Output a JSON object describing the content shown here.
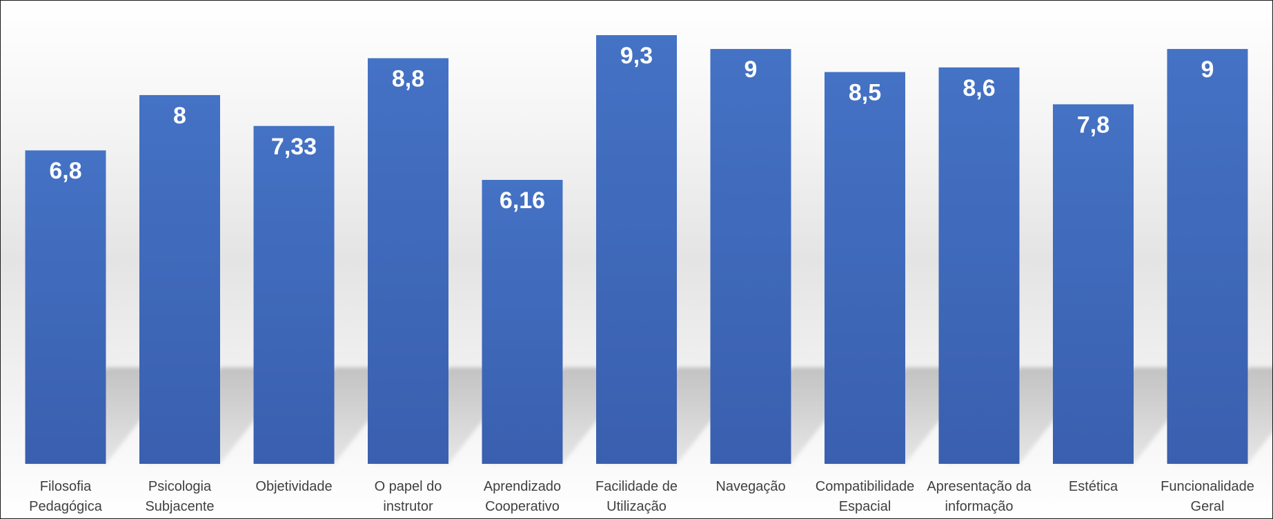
{
  "chart_data": {
    "type": "bar",
    "categories": [
      [
        "Filosofia",
        "Pedagógica"
      ],
      [
        "Psicologia",
        "Subjacente"
      ],
      [
        "Objetividade"
      ],
      [
        "O papel do",
        "instrutor"
      ],
      [
        "Aprendizado",
        "Cooperativo"
      ],
      [
        "Facilidade de",
        "Utilização"
      ],
      [
        "Navegação"
      ],
      [
        "Compatibilidade",
        "Espacial"
      ],
      [
        "Apresentação da",
        "informação"
      ],
      [
        "Estética"
      ],
      [
        "Funcionalidade",
        "Geral"
      ]
    ],
    "values": [
      6.8,
      8,
      7.33,
      8.8,
      6.16,
      9.3,
      9,
      8.5,
      8.6,
      7.8,
      9
    ],
    "data_labels": [
      "6,8",
      "8",
      "7,33",
      "8,8",
      "6,16",
      "9,3",
      "9",
      "8,5",
      "8,6",
      "7,8",
      "9"
    ],
    "title": "",
    "xlabel": "",
    "ylabel": "",
    "ylim": [
      0,
      10
    ],
    "grid": false,
    "legend": "none",
    "colors": {
      "bar_top": "#4472C4",
      "bar_bottom": "#3A5FAF",
      "value_label": "#FFFFFF",
      "category_label": "#404040",
      "border": "#1A1A1A"
    }
  }
}
